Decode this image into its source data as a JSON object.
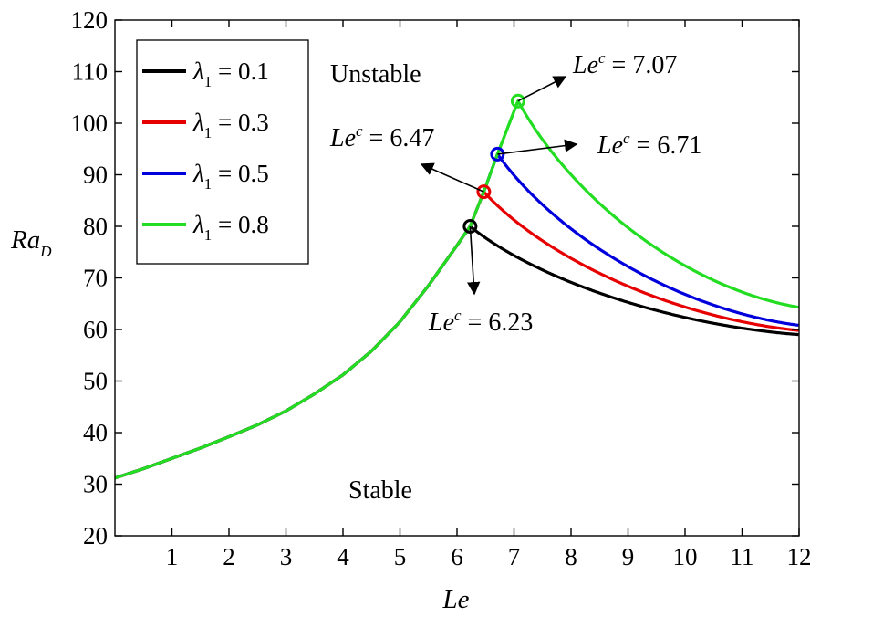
{
  "chart_data": {
    "type": "line",
    "title": "",
    "xlabel": "Le",
    "ylabel": {
      "main": "Ra",
      "sub": "D"
    },
    "xlim": [
      0,
      12
    ],
    "ylim": [
      20,
      120
    ],
    "xticks": [
      1,
      2,
      3,
      4,
      5,
      6,
      7,
      8,
      9,
      10,
      11,
      12
    ],
    "yticks": [
      20,
      30,
      40,
      50,
      60,
      70,
      80,
      90,
      100,
      110,
      120
    ],
    "grid": false,
    "legend_position": "top-left",
    "regions": [
      {
        "label": "Unstable",
        "x": 5.7,
        "y": 108.5
      },
      {
        "label": "Stable",
        "x": 5.0,
        "y": 29
      }
    ],
    "series": [
      {
        "name": "λ1 = 0.1",
        "lambda_label": "λ",
        "lambda_sub": "1",
        "value": "0.1",
        "color": "#000000",
        "critical": {
          "x": 6.23,
          "y": 80
        },
        "decay_end": {
          "x": 12,
          "y": 59
        }
      },
      {
        "name": "λ1 = 0.3",
        "lambda_label": "λ",
        "lambda_sub": "1",
        "value": "0.3",
        "color": "#e60000",
        "critical": {
          "x": 6.47,
          "y": 86.7
        },
        "decay_end": {
          "x": 12,
          "y": 59.8
        }
      },
      {
        "name": "λ1 = 0.5",
        "lambda_label": "λ",
        "lambda_sub": "1",
        "value": "0.5",
        "color": "#0000dd",
        "critical": {
          "x": 6.71,
          "y": 94
        },
        "decay_end": {
          "x": 12,
          "y": 60.8
        }
      },
      {
        "name": "λ1 = 0.8",
        "lambda_label": "λ",
        "lambda_sub": "1",
        "value": "0.8",
        "color": "#22dd22",
        "critical": {
          "x": 7.07,
          "y": 104.3
        },
        "decay_end": {
          "x": 12,
          "y": 64.3
        }
      }
    ],
    "stable_branch": [
      [
        0,
        31.2
      ],
      [
        0.5,
        33
      ],
      [
        1,
        35
      ],
      [
        1.5,
        37
      ],
      [
        2,
        39.2
      ],
      [
        2.5,
        41.5
      ],
      [
        3,
        44.2
      ],
      [
        3.5,
        47.5
      ],
      [
        4,
        51.2
      ],
      [
        4.5,
        55.8
      ],
      [
        5,
        61.5
      ],
      [
        5.5,
        68.5
      ],
      [
        6.0,
        76.3
      ],
      [
        6.23,
        80
      ],
      [
        6.47,
        86.7
      ],
      [
        6.71,
        94
      ],
      [
        7.07,
        104.3
      ]
    ],
    "annotations": [
      {
        "id": "ann-6-23",
        "prefix": "Le",
        "sup": "c",
        "text": " = 6.23",
        "series": 0,
        "anchor": {
          "x": 4.87,
          "y": 61.5
        },
        "arrow_to": {
          "x": 6.37,
          "y": 71.5
        }
      },
      {
        "id": "ann-6-47",
        "prefix": "Le",
        "sup": "c",
        "text": " = 6.47",
        "series": 1,
        "anchor": {
          "x": 3.95,
          "y": 95.5
        },
        "arrow_to": {
          "x": 5.4,
          "y": 92.5
        }
      },
      {
        "id": "ann-6-71",
        "prefix": "Le",
        "sup": "c",
        "text": " = 6.71",
        "series": 2,
        "anchor": {
          "x": 8.5,
          "y": 95.5
        },
        "arrow_to": {
          "x": 8.1,
          "y": 95.5
        }
      },
      {
        "id": "ann-7-07",
        "prefix": "Le",
        "sup": "c",
        "text": " = 7.07",
        "series": 3,
        "anchor": {
          "x": 8.0,
          "y": 112
        },
        "arrow_to": {
          "x": 7.95,
          "y": 109
        }
      }
    ]
  }
}
